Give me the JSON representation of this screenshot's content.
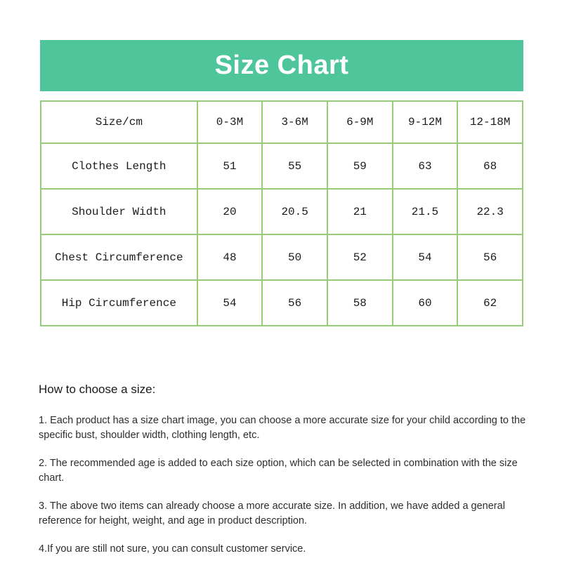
{
  "banner": {
    "title": "Size Chart",
    "background_color": "#4ec59a",
    "text_color": "#ffffff"
  },
  "table": {
    "border_color": "#9acb76",
    "columns": [
      "Size/cm",
      "0-3M",
      "3-6M",
      "6-9M",
      "9-12M",
      "12-18M"
    ],
    "rows": [
      {
        "label": "Clothes Length",
        "values": [
          "51",
          "55",
          "59",
          "63",
          "68"
        ]
      },
      {
        "label": "Shoulder Width",
        "values": [
          "20",
          "20.5",
          "21",
          "21.5",
          "22.3"
        ]
      },
      {
        "label": "Chest Circumference",
        "values": [
          "48",
          "50",
          "52",
          "54",
          "56"
        ]
      },
      {
        "label": "Hip Circumference",
        "values": [
          "54",
          "56",
          "58",
          "60",
          "62"
        ]
      }
    ]
  },
  "howto": {
    "heading": "How to choose a size:",
    "items": [
      "1. Each product has a size chart image, you can choose a more accurate size for your child according to the specific bust, shoulder width, clothing length, etc.",
      "2. The recommended age is added to each size option, which can be selected in combination with the size chart.",
      "3. The above two items can already choose a more accurate size. In addition, we have added a general reference for height, weight, and age in product description.",
      "4.If you are still not sure, you can consult customer service."
    ]
  },
  "chart_data": {
    "type": "table",
    "title": "Size Chart",
    "categories": [
      "0-3M",
      "3-6M",
      "6-9M",
      "9-12M",
      "12-18M"
    ],
    "series": [
      {
        "name": "Clothes Length",
        "values": [
          51,
          55,
          59,
          63,
          68
        ]
      },
      {
        "name": "Shoulder Width",
        "values": [
          20,
          20.5,
          21,
          21.5,
          22.3
        ]
      },
      {
        "name": "Chest Circumference",
        "values": [
          48,
          50,
          52,
          54,
          56
        ]
      },
      {
        "name": "Hip Circumference",
        "values": [
          54,
          56,
          58,
          60,
          62
        ]
      }
    ],
    "unit": "cm"
  }
}
